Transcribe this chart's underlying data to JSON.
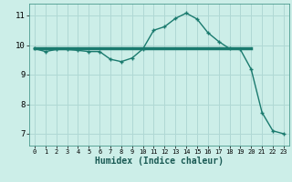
{
  "line1_x": [
    0,
    1,
    2,
    3,
    4,
    5,
    6,
    7,
    8,
    9,
    10,
    11,
    12,
    13,
    14,
    15,
    16,
    17,
    18,
    19,
    20,
    21,
    22,
    23
  ],
  "line1_y": [
    9.88,
    9.78,
    9.85,
    9.85,
    9.82,
    9.78,
    9.78,
    9.52,
    9.44,
    9.56,
    9.87,
    10.5,
    10.62,
    10.9,
    11.08,
    10.88,
    10.42,
    10.12,
    9.88,
    9.85,
    9.18,
    7.72,
    7.1,
    7.0
  ],
  "line2_x": [
    0,
    9,
    19,
    20
  ],
  "line2_y": [
    9.9,
    9.9,
    9.9,
    9.9
  ],
  "color": "#1a7a6e",
  "bg_color": "#cceee8",
  "grid_color": "#b0d8d4",
  "xlabel": "Humidex (Indice chaleur)",
  "ylim": [
    6.6,
    11.4
  ],
  "xlim": [
    -0.5,
    23.5
  ],
  "yticks": [
    7,
    8,
    9,
    10,
    11
  ],
  "xticks": [
    0,
    1,
    2,
    3,
    4,
    5,
    6,
    7,
    8,
    9,
    10,
    11,
    12,
    13,
    14,
    15,
    16,
    17,
    18,
    19,
    20,
    21,
    22,
    23
  ]
}
